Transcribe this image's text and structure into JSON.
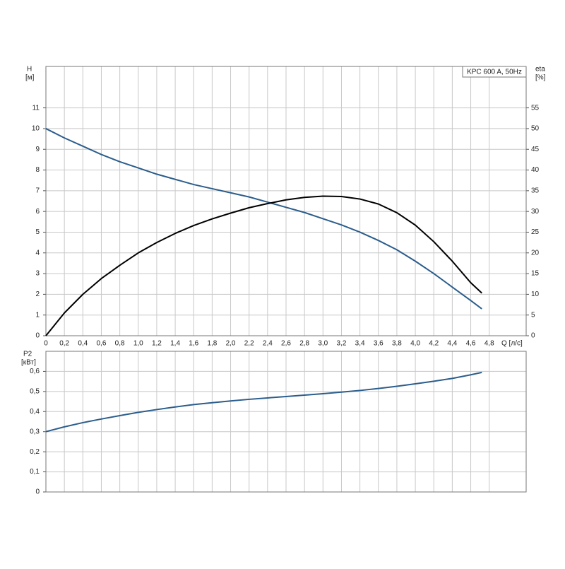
{
  "chart_data": [
    {
      "type": "line",
      "annotation": "KPC 600 A, 50Hz",
      "y_label": "H",
      "y_unit": "[м]",
      "y2_label": "eta",
      "y2_unit": "[%]",
      "x_label": "Q [л/с]",
      "x": [
        0,
        0.2,
        0.4,
        0.6,
        0.8,
        1.0,
        1.2,
        1.4,
        1.6,
        1.8,
        2.0,
        2.2,
        2.4,
        2.6,
        2.8,
        3.0,
        3.2,
        3.4,
        3.6,
        3.8,
        4.0,
        4.2,
        4.4,
        4.6,
        4.72
      ],
      "series": [
        {
          "name": "H",
          "color": "#2b5d8c",
          "values": [
            10,
            9.55,
            9.15,
            8.75,
            8.4,
            8.1,
            7.8,
            7.55,
            7.3,
            7.1,
            6.9,
            6.7,
            6.45,
            6.2,
            5.95,
            5.65,
            5.35,
            5.0,
            4.6,
            4.15,
            3.6,
            3.0,
            2.35,
            1.7,
            1.3
          ]
        },
        {
          "name": "eta",
          "color": "#000000",
          "axis": "y2",
          "values": [
            0,
            5.5,
            10,
            13.8,
            17,
            20,
            22.5,
            24.7,
            26.6,
            28.2,
            29.6,
            30.9,
            31.9,
            32.8,
            33.4,
            33.7,
            33.6,
            33.0,
            31.8,
            29.7,
            26.7,
            22.7,
            18.0,
            12.8,
            10.3
          ]
        }
      ],
      "xlim": [
        0,
        5.2
      ],
      "xticks": [
        0,
        {
          "value": 0.2,
          "label": "0,2"
        },
        {
          "value": 0.4,
          "label": "0,4"
        },
        {
          "value": 0.6,
          "label": "0,6"
        },
        {
          "value": 0.8,
          "label": "0,8"
        },
        {
          "value": 1.0,
          "label": "1,0"
        },
        {
          "value": 1.2,
          "label": "1,2"
        },
        {
          "value": 1.4,
          "label": "1,4"
        },
        {
          "value": 1.6,
          "label": "1,6"
        },
        {
          "value": 1.8,
          "label": "1,8"
        },
        {
          "value": 2.0,
          "label": "2,0"
        },
        {
          "value": 2.2,
          "label": "2,2"
        },
        {
          "value": 2.4,
          "label": "2,4"
        },
        {
          "value": 2.6,
          "label": "2,6"
        },
        {
          "value": 2.8,
          "label": "2,8"
        },
        {
          "value": 3.0,
          "label": "3,0"
        },
        {
          "value": 3.2,
          "label": "3,2"
        },
        {
          "value": 3.4,
          "label": "3,4"
        },
        {
          "value": 3.6,
          "label": "3,6"
        },
        {
          "value": 3.8,
          "label": "3,8"
        },
        {
          "value": 4.0,
          "label": "4,0"
        },
        {
          "value": 4.2,
          "label": "4,2"
        },
        {
          "value": 4.4,
          "label": "4,4"
        },
        {
          "value": 4.6,
          "label": "4,6"
        },
        {
          "value": 4.8,
          "label": "4,8"
        }
      ],
      "ylim": [
        0,
        13
      ],
      "yticks": [
        0,
        1,
        2,
        3,
        4,
        5,
        6,
        7,
        8,
        9,
        10,
        11
      ],
      "y2lim": [
        0,
        65
      ],
      "y2ticks": [
        0,
        5,
        10,
        15,
        20,
        25,
        30,
        35,
        40,
        45,
        50,
        55
      ],
      "grid": true
    },
    {
      "type": "line",
      "y_label": "P2",
      "y_unit": "[кВт]",
      "x": [
        0,
        0.2,
        0.4,
        0.6,
        0.8,
        1.0,
        1.2,
        1.4,
        1.6,
        1.8,
        2.0,
        2.2,
        2.4,
        2.6,
        2.8,
        3.0,
        3.2,
        3.4,
        3.6,
        3.8,
        4.0,
        4.2,
        4.4,
        4.6,
        4.72
      ],
      "series": [
        {
          "name": "P2",
          "color": "#2b5d8c",
          "values": [
            0.3,
            0.324,
            0.345,
            0.363,
            0.38,
            0.396,
            0.41,
            0.423,
            0.435,
            0.444,
            0.453,
            0.461,
            0.468,
            0.475,
            0.482,
            0.489,
            0.497,
            0.505,
            0.515,
            0.526,
            0.538,
            0.551,
            0.565,
            0.583,
            0.595
          ]
        }
      ],
      "xlim": [
        0,
        5.2
      ],
      "ylim": [
        0,
        0.7
      ],
      "yticks": [
        0,
        {
          "value": 0.1,
          "label": "0,1"
        },
        {
          "value": 0.2,
          "label": "0,2"
        },
        {
          "value": 0.3,
          "label": "0,3"
        },
        {
          "value": 0.4,
          "label": "0,4"
        },
        {
          "value": 0.5,
          "label": "0,5"
        },
        {
          "value": 0.6,
          "label": "0,6"
        }
      ],
      "grid": true
    }
  ]
}
